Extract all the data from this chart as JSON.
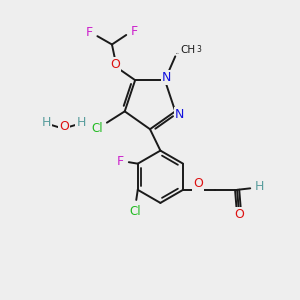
{
  "bg_color": "#eeeeee",
  "C": "#1a1a1a",
  "H": "#5a9e9e",
  "O": "#dd1111",
  "N": "#1111dd",
  "F": "#cc22cc",
  "Cl": "#22bb22",
  "bond": "#1a1a1a",
  "lw": 1.4,
  "fs": 9.0,
  "fs_small": 7.5,
  "fs_sub": 5.5
}
